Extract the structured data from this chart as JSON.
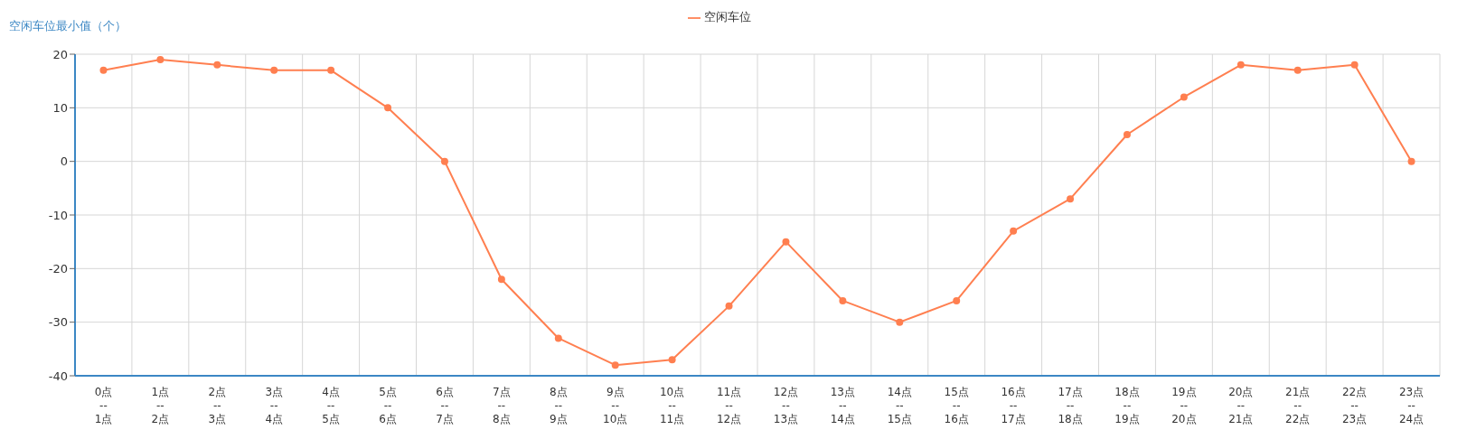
{
  "chart_data": {
    "type": "line",
    "ylabel": "空闲车位最小值（个）",
    "categories": [
      "0点\n--\n1点",
      "1点\n--\n2点",
      "2点\n--\n3点",
      "3点\n--\n4点",
      "4点\n--\n5点",
      "5点\n--\n6点",
      "6点\n--\n7点",
      "7点\n--\n8点",
      "8点\n--\n9点",
      "9点\n--\n10点",
      "10点\n--\n11点",
      "11点\n--\n12点",
      "12点\n--\n13点",
      "13点\n--\n14点",
      "14点\n--\n15点",
      "15点\n--\n16点",
      "16点\n--\n17点",
      "17点\n--\n18点",
      "18点\n--\n19点",
      "19点\n--\n20点",
      "20点\n--\n21点",
      "21点\n--\n22点",
      "22点\n--\n23点",
      "23点\n--\n24点"
    ],
    "series": [
      {
        "name": "空闲车位",
        "color": "#ff7f50",
        "values": [
          17,
          19,
          18,
          17,
          17,
          10,
          0,
          -22,
          -33,
          -38,
          -37,
          -27,
          -15,
          -26,
          -30,
          -26,
          -13,
          -7,
          5,
          12,
          18,
          17,
          18,
          0
        ]
      }
    ],
    "ylim": [
      -40,
      20
    ],
    "yticks": [
      -40,
      -30,
      -20,
      -10,
      0,
      10,
      20
    ],
    "grid": true,
    "legend": "top",
    "marker": "circle",
    "line_style": "solid"
  }
}
